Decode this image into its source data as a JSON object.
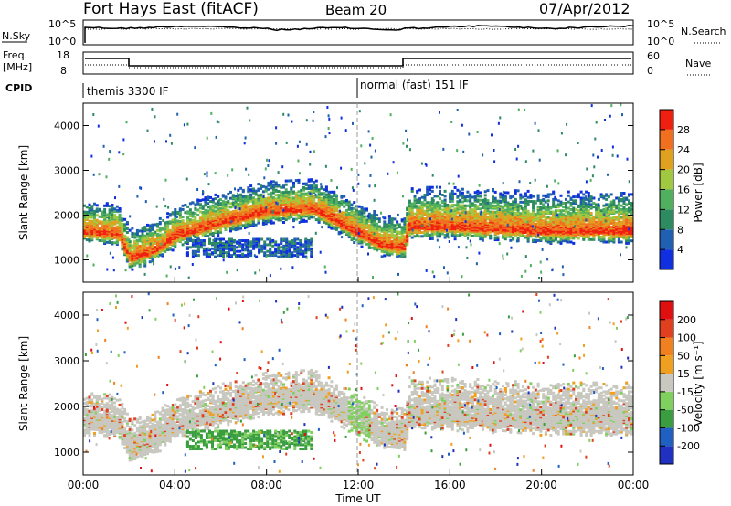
{
  "header": {
    "title": "Fort Hays East (fitACF)",
    "beam": "Beam 20",
    "date": "07/Apr/2012"
  },
  "panels": {
    "nsky": {
      "left_label": "N.Sky",
      "right_label": "N.Search",
      "left_ticks": [
        "10^5",
        "10^0"
      ],
      "right_ticks": [
        "10^5",
        "10^0"
      ]
    },
    "freq": {
      "left_label_1": "Freq.",
      "left_label_2": "[MHz]",
      "right_label": "Nave",
      "left_ticks": [
        "18",
        "8"
      ],
      "right_ticks": [
        "60",
        "0"
      ]
    },
    "cpid": {
      "label": "CPID",
      "modes": [
        {
          "name": "themis 3300 IF",
          "start_hour": 0,
          "end_hour": 12
        },
        {
          "name": "normal (fast) 151 IF",
          "start_hour": 12,
          "end_hour": 24
        }
      ]
    }
  },
  "colors": {
    "power": [
      "#1030e0",
      "#2060b0",
      "#2e8a60",
      "#50b060",
      "#a0c840",
      "#e0a020",
      "#f07020",
      "#f02010"
    ],
    "velocity": [
      "#2030c0",
      "#2060c0",
      "#3a9e40",
      "#80d060",
      "#c8c8c0",
      "#f0a020",
      "#f08020",
      "#e04020",
      "#e01010"
    ]
  },
  "chart_data": [
    {
      "type": "heatmap",
      "title": "",
      "xlabel": "Time UT",
      "ylabel": "Slant Range [km]",
      "xlim": [
        0,
        24
      ],
      "ylim": [
        500,
        4500
      ],
      "x_ticks": [
        "00:00",
        "04:00",
        "08:00",
        "12:00",
        "16:00",
        "20:00",
        "00:00"
      ],
      "y_ticks": [
        "1000",
        "2000",
        "3000",
        "4000"
      ],
      "colorbar_label": "Power [dB]",
      "colorbar_ticks": [
        "4",
        "8",
        "12",
        "16",
        "20",
        "24",
        "28"
      ],
      "colorbar_range": [
        0,
        30
      ],
      "main_band_center_km": [
        [
          0,
          1650
        ],
        [
          1.5,
          1600
        ],
        [
          2,
          1050
        ],
        [
          3,
          1200
        ],
        [
          4,
          1550
        ],
        [
          6,
          1850
        ],
        [
          8,
          2100
        ],
        [
          10,
          2150
        ],
        [
          11,
          1900
        ],
        [
          12,
          1600
        ],
        [
          13,
          1350
        ],
        [
          14,
          1300
        ],
        [
          14.2,
          1750
        ],
        [
          16,
          1750
        ],
        [
          18,
          1700
        ],
        [
          20,
          1650
        ],
        [
          22,
          1650
        ],
        [
          24,
          1650
        ]
      ],
      "secondary_echo_range_km": [
        1100,
        1500
      ],
      "secondary_echo_time_ut": [
        4.5,
        10
      ]
    },
    {
      "type": "heatmap",
      "title": "",
      "xlabel": "Time UT",
      "ylabel": "Slant Range [km]",
      "xlim": [
        0,
        24
      ],
      "ylim": [
        500,
        4500
      ],
      "x_ticks": [
        "00:00",
        "04:00",
        "08:00",
        "12:00",
        "16:00",
        "20:00",
        "00:00"
      ],
      "y_ticks": [
        "1000",
        "2000",
        "3000",
        "4000"
      ],
      "colorbar_label": "Velocity [m s⁻¹]",
      "colorbar_ticks": [
        "200",
        "100",
        "50",
        "15",
        "-15",
        "-50",
        "-100",
        "-200"
      ],
      "colorbar_range": [
        -250,
        250
      ]
    }
  ],
  "time_axis_label": "Time UT"
}
